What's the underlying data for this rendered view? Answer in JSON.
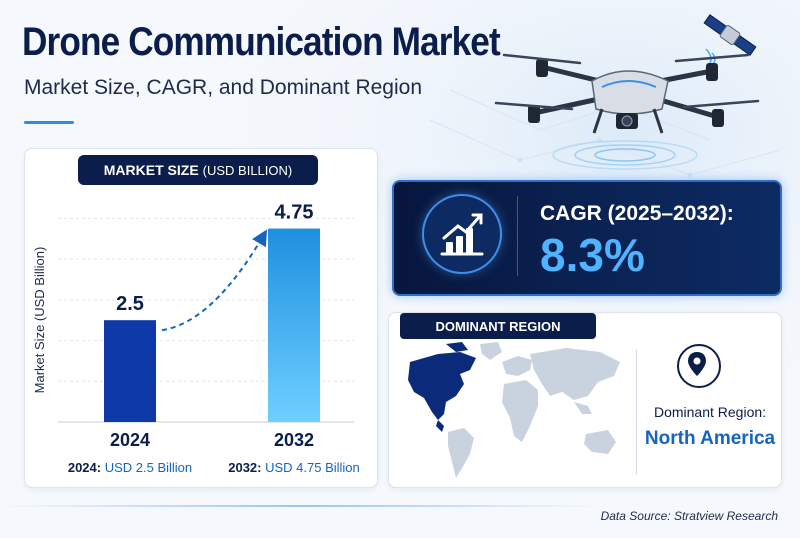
{
  "header": {
    "title": "Drone Communication Market",
    "subtitle": "Market Size, CAGR, and Dominant Region"
  },
  "market_size": {
    "header_label": "MARKET SIZE",
    "header_unit": "(USD BILLION)"
  },
  "cagr": {
    "label": "CAGR (2025–2032):",
    "value": "8.3%"
  },
  "dominant_region": {
    "header_label": "DOMINANT REGION",
    "label": "Dominant Region:",
    "value": "North America"
  },
  "source": "Data Source: Stratview Research",
  "colors": {
    "navy": "#0b1d4a",
    "bar_2024": "#0d3aa8",
    "bar_2032_top": "#1e8fe0",
    "bar_2032_bottom": "#6fd0ff",
    "accent_blue": "#1565c0",
    "cagr_text": "#4fb3ff"
  },
  "icons": [
    "satellite-icon",
    "drone-illustration",
    "growth-chart-icon",
    "location-pin-icon",
    "world-map"
  ],
  "chart_data": {
    "type": "bar",
    "categories": [
      "2024",
      "2032"
    ],
    "values": [
      2.5,
      4.75
    ],
    "value_labels": [
      "2.5",
      "4.75"
    ],
    "ylabel": "Market Size (USD Billion)",
    "ylim": [
      0,
      5.5
    ],
    "grid": true,
    "captions": [
      {
        "prefix": "2024:",
        "text": "USD 2.5 Billion"
      },
      {
        "prefix": "2032:",
        "text": "USD 4.75 Billion"
      }
    ],
    "trend_arrow": true
  }
}
